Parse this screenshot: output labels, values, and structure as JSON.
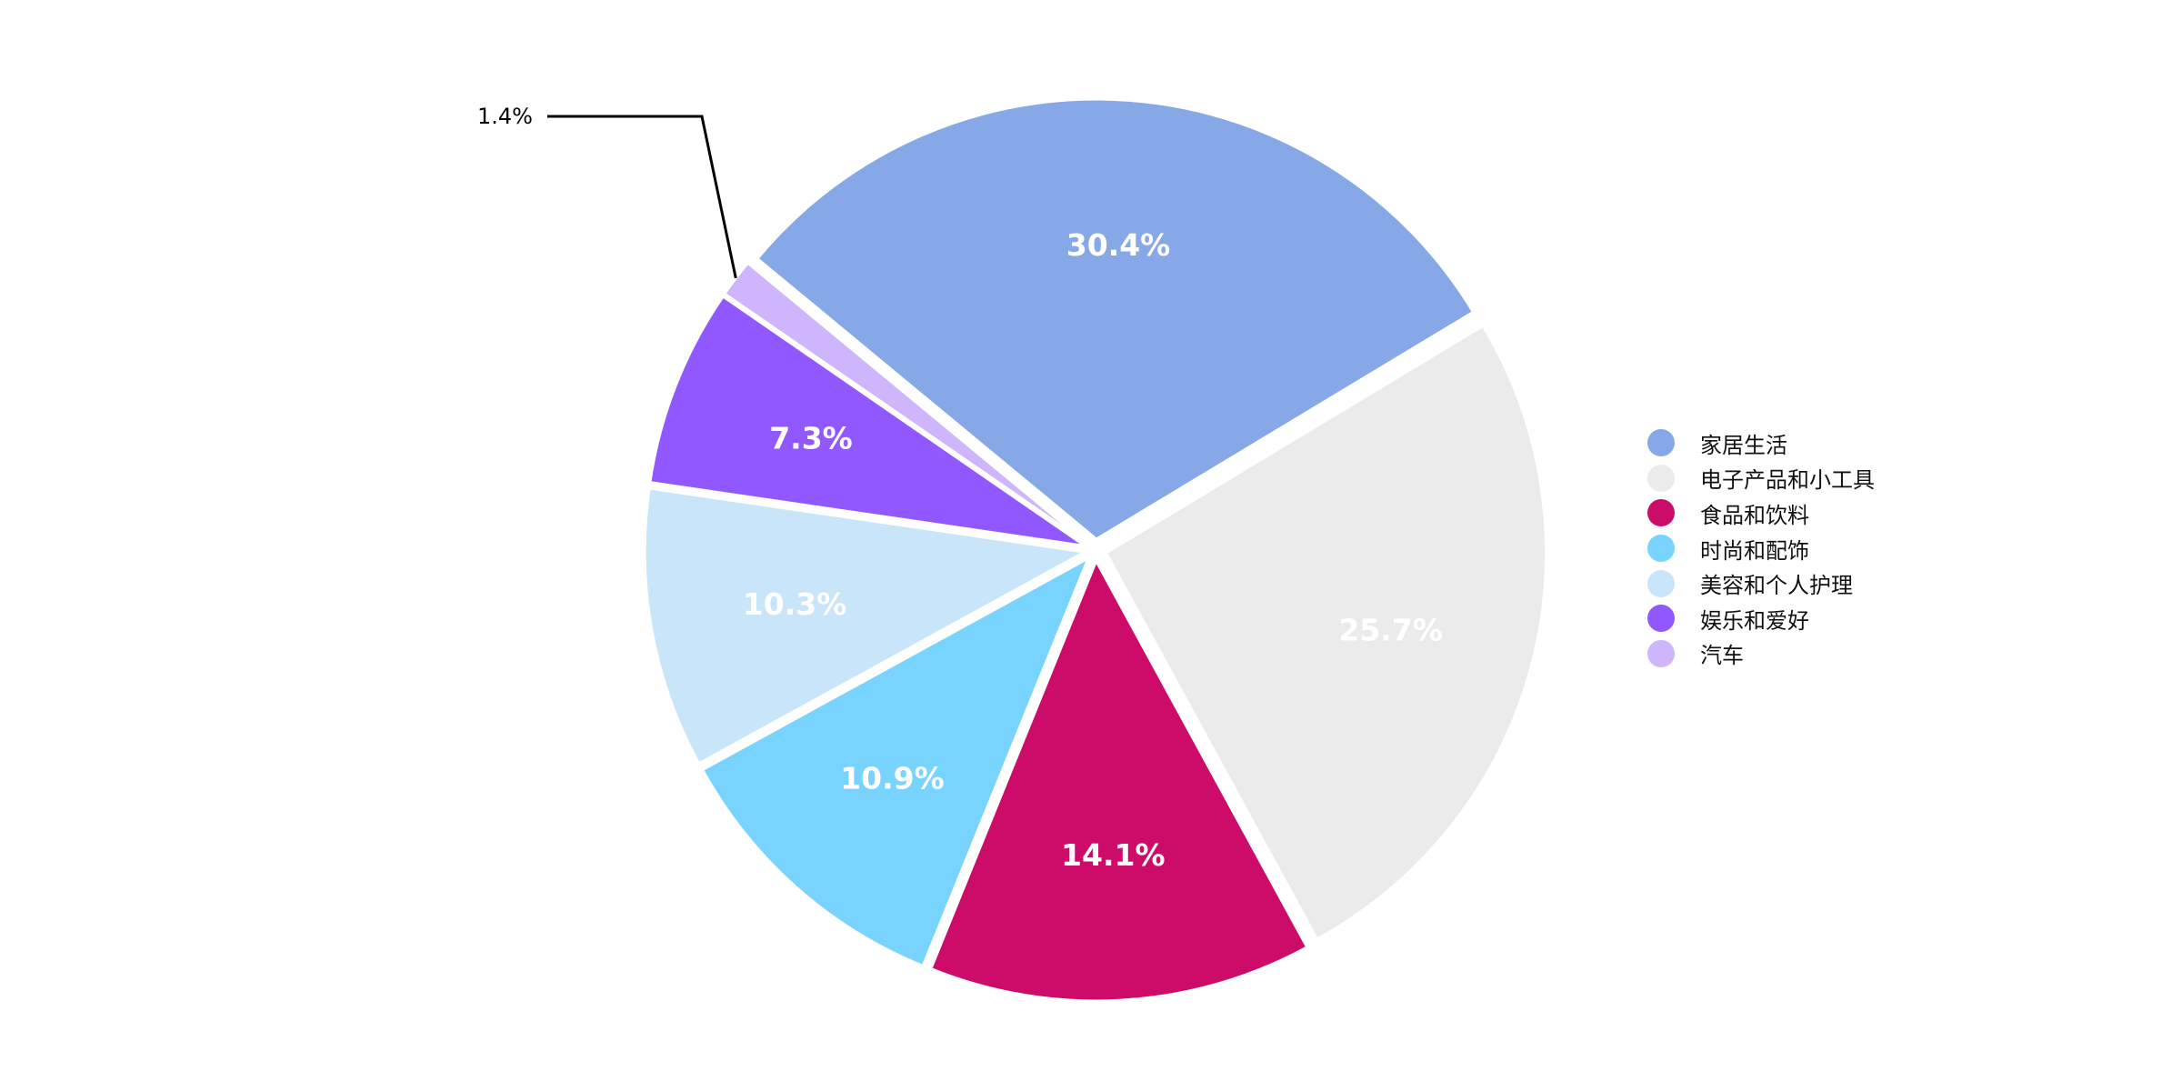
{
  "chart_data": {
    "type": "pie",
    "title": "",
    "legend_position": "right",
    "start_angle_deg": 140.4,
    "direction": "clockwise",
    "slices": [
      {
        "name": "家居生活",
        "value": 30.4,
        "label": "30.4%",
        "color": "#87A8E6",
        "label_color": "#ffffff",
        "label_position": "inside"
      },
      {
        "name": "电子产品和小工具",
        "value": 25.7,
        "label": "25.7%",
        "color": "#EBEBEB",
        "label_color": "#ffffff",
        "label_position": "inside"
      },
      {
        "name": "食品和饮料",
        "value": 14.1,
        "label": "14.1%",
        "color": "#CD0C69",
        "label_color": "#ffffff",
        "label_position": "inside"
      },
      {
        "name": "时尚和配饰",
        "value": 10.9,
        "label": "10.9%",
        "color": "#78D4FE",
        "label_color": "#ffffff",
        "label_position": "inside"
      },
      {
        "name": "美容和个人护理",
        "value": 10.3,
        "label": "10.3%",
        "color": "#C8E5F9",
        "label_color": "#ffffff",
        "label_position": "inside"
      },
      {
        "name": "娱乐和爱好",
        "value": 7.3,
        "label": "7.3%",
        "color": "#9058FE",
        "label_color": "#ffffff",
        "label_position": "inside"
      },
      {
        "name": "汽车",
        "value": 1.4,
        "label": "1.4%",
        "color": "#CFB5FC",
        "label_color": "#000000",
        "label_position": "outside"
      }
    ]
  }
}
